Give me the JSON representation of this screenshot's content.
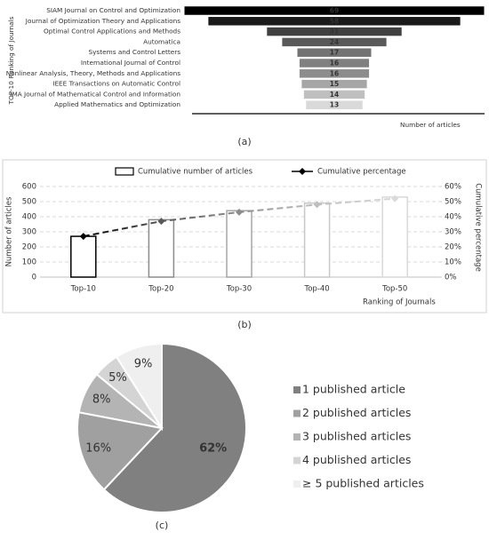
{
  "chart_data": [
    {
      "type": "funnel",
      "caption": "(a)",
      "ylabel": "TOP-10 Ranking of Journals",
      "xlabel": "Number of articles",
      "categories": [
        "SIAM Journal on Control and Optimization",
        "Journal of Optimization Theory and Applications",
        "Optimal Control Applications and Methods",
        "Automatica",
        "Systems and Control Letters",
        "International Journal of Control",
        "Nonlinear Analysis, Theory, Methods and Applications",
        "IEEE Transactions on Automatic Control",
        "IMA Journal of Mathematical Control and Information",
        "Applied Mathematics and Optimization"
      ],
      "values": [
        69,
        58,
        31,
        24,
        17,
        16,
        16,
        15,
        14,
        13
      ],
      "colors": [
        "#000000",
        "#1a1a1a",
        "#404040",
        "#595959",
        "#737373",
        "#808080",
        "#8c8c8c",
        "#a6a6a6",
        "#bfbfbf",
        "#d9d9d9"
      ]
    },
    {
      "type": "bar",
      "caption": "(b)",
      "xlabel": "Ranking of Journals",
      "ylabel": "Number of articles",
      "y2label": "Cumulative percentage",
      "categories": [
        "Top-10",
        "Top-20",
        "Top-30",
        "Top-40",
        "Top-50"
      ],
      "series": [
        {
          "name": "Cumulative number of articles",
          "type": "bar",
          "colors": [
            "#000000",
            "#8c8c8c",
            "#a6a6a6",
            "#c8c8c8",
            "#d9d9d9"
          ],
          "values": [
            270,
            380,
            440,
            490,
            530
          ]
        },
        {
          "name": "Cumulative percentage",
          "type": "line",
          "axis": "y2",
          "colors": [
            "#000000",
            "#595959",
            "#8c8c8c",
            "#bfbfbf",
            "#d9d9d9"
          ],
          "values": [
            27,
            37,
            43,
            48,
            52
          ]
        }
      ],
      "ylim": [
        0,
        600
      ],
      "yticks": [
        0,
        100,
        200,
        300,
        400,
        500,
        600
      ],
      "y2lim": [
        0,
        60
      ],
      "y2ticks": [
        {
          "value": 0,
          "label": "0%"
        },
        {
          "value": 10,
          "label": "10%"
        },
        {
          "value": 20,
          "label": "20%"
        },
        {
          "value": 30,
          "label": "30%"
        },
        {
          "value": 40,
          "label": "40%"
        },
        {
          "value": 50,
          "label": "50%"
        },
        {
          "value": 60,
          "label": "60%"
        }
      ],
      "grid": true
    },
    {
      "type": "pie",
      "caption": "(c)",
      "categories": [
        "1 published article",
        "2 published articles",
        "3 published articles",
        "4 published articles",
        "≥ 5 published articles"
      ],
      "values": [
        62,
        16,
        8,
        5,
        9
      ],
      "value_labels": [
        "62%",
        "16%",
        "8%",
        "5%",
        "9%"
      ],
      "colors": [
        "#808080",
        "#a0a0a0",
        "#b4b4b4",
        "#d4d4d4",
        "#efefef"
      ]
    }
  ]
}
